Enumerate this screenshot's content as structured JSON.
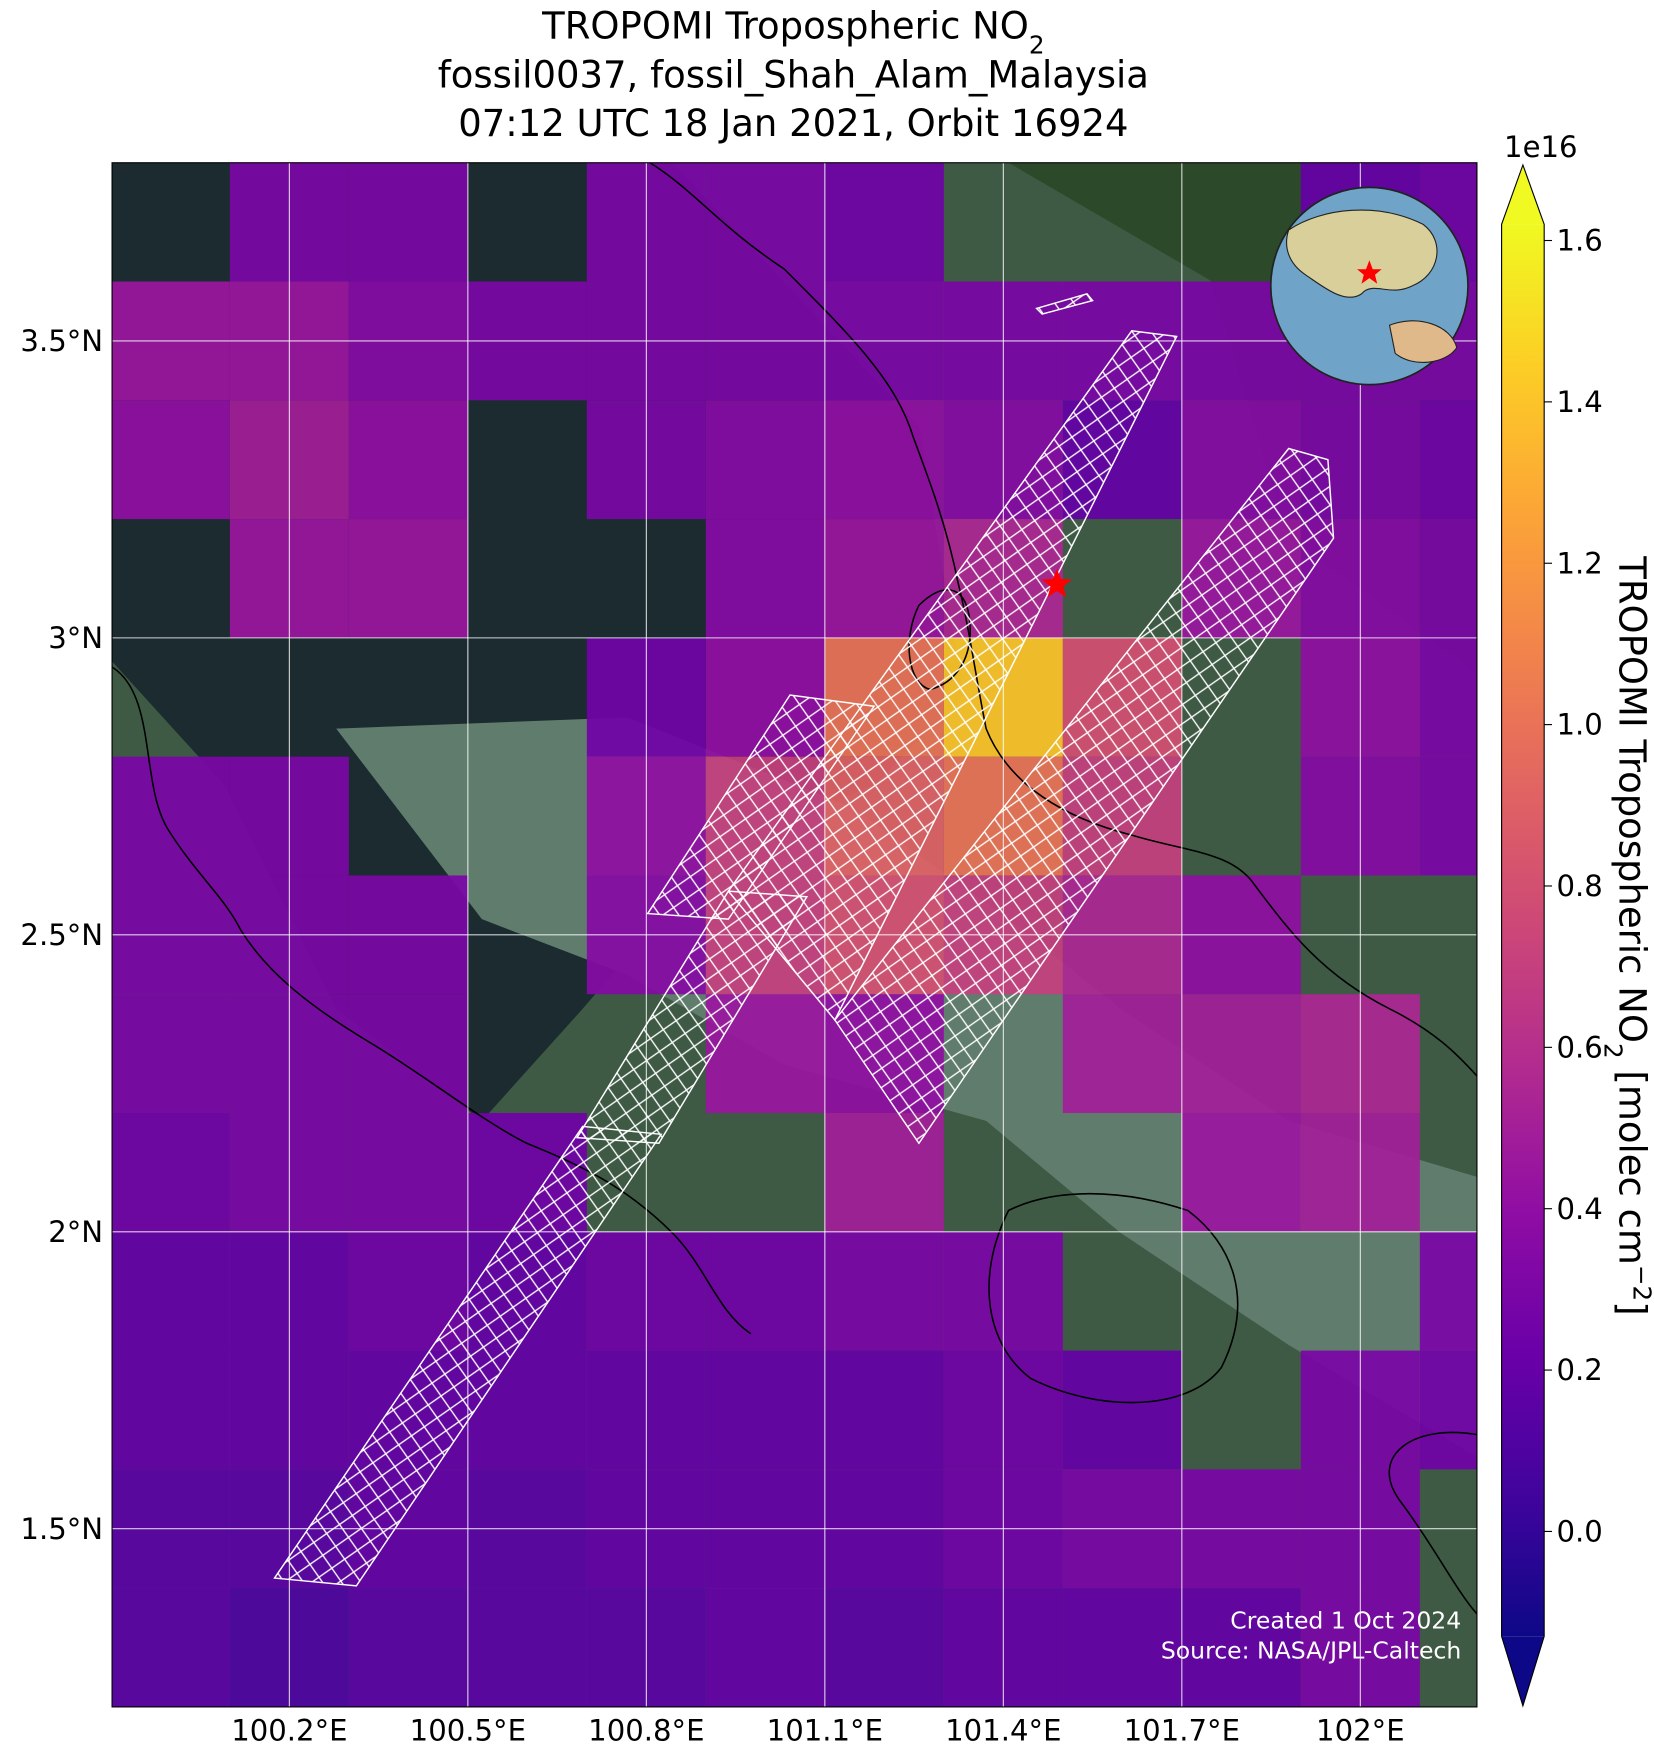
{
  "chart_data": {
    "type": "map",
    "title": {
      "text": "TROPOMI Tropospheric NO",
      "subscript": "2"
    },
    "subtitle": [
      "fossil0037, fossil_Shah_Alam_Malaysia",
      "07:12 UTC 18 Jan 2021, Orbit 16924"
    ],
    "xlim": [
      99.902,
      102.196
    ],
    "ylim": [
      1.2,
      3.8
    ],
    "xticks": [
      {
        "value": 100.2,
        "label": "100.2°E"
      },
      {
        "value": 100.5,
        "label": "100.5°E"
      },
      {
        "value": 100.8,
        "label": "100.8°E"
      },
      {
        "value": 101.1,
        "label": "101.1°E"
      },
      {
        "value": 101.4,
        "label": "101.4°E"
      },
      {
        "value": 101.7,
        "label": "101.7°E"
      },
      {
        "value": 102,
        "label": "102°E"
      }
    ],
    "yticks": [
      {
        "value": 1.5,
        "label": "1.5°N"
      },
      {
        "value": 2,
        "label": "2°N"
      },
      {
        "value": 2.5,
        "label": "2.5°N"
      },
      {
        "value": 3,
        "label": "3°N"
      },
      {
        "value": 3.5,
        "label": "3.5°N"
      }
    ],
    "grid": true,
    "lon_edges": [
      99.9,
      100.1,
      100.3,
      100.5,
      100.7,
      100.9,
      101.1,
      101.3,
      101.5,
      101.7,
      101.9,
      102.1,
      102.3
    ],
    "lat_edges": [
      3.8,
      3.6,
      3.4,
      3.2,
      3.0,
      2.8,
      2.6,
      2.4,
      2.2,
      2.0,
      1.8,
      1.6,
      1.4,
      1.2
    ],
    "values": [
      [
        null,
        0.3,
        0.3,
        null,
        0.3,
        0.3,
        0.25,
        null,
        null,
        null,
        0.2,
        0.25
      ],
      [
        0.45,
        0.45,
        0.35,
        0.3,
        0.3,
        0.3,
        0.3,
        0.3,
        0.3,
        0.3,
        0.3,
        0.3
      ],
      [
        0.4,
        0.5,
        0.4,
        null,
        0.3,
        0.35,
        0.4,
        0.35,
        0.2,
        0.35,
        0.3,
        0.25
      ],
      [
        null,
        0.45,
        0.45,
        null,
        null,
        0.35,
        0.45,
        0.55,
        null,
        0.45,
        0.35,
        0.3
      ],
      [
        null,
        null,
        null,
        null,
        0.25,
        0.4,
        1.0,
        1.4,
        0.8,
        null,
        0.4,
        0.3
      ],
      [
        0.3,
        0.3,
        null,
        null,
        0.4,
        0.7,
        0.9,
        1.0,
        0.7,
        null,
        0.35,
        0.3
      ],
      [
        0.3,
        0.3,
        0.3,
        null,
        0.35,
        0.7,
        0.8,
        0.7,
        0.55,
        0.4,
        null,
        null
      ],
      [
        0.3,
        0.3,
        0.3,
        null,
        null,
        0.45,
        0.4,
        null,
        0.5,
        0.5,
        0.55,
        null
      ],
      [
        0.25,
        0.3,
        0.3,
        0.25,
        null,
        null,
        0.5,
        null,
        null,
        0.45,
        0.5,
        null
      ],
      [
        0.2,
        0.2,
        0.25,
        0.2,
        0.25,
        0.25,
        0.3,
        0.3,
        null,
        null,
        null,
        0.3
      ],
      [
        0.2,
        0.2,
        0.2,
        0.2,
        0.2,
        0.2,
        0.2,
        0.25,
        0.2,
        null,
        0.3,
        0.25
      ],
      [
        0.15,
        0.15,
        0.2,
        0.15,
        0.2,
        0.2,
        0.2,
        0.25,
        0.3,
        0.3,
        0.3,
        null
      ],
      [
        0.15,
        0.1,
        0.15,
        0.15,
        0.15,
        0.2,
        0.15,
        0.2,
        0.2,
        0.2,
        0.3,
        null
      ]
    ],
    "colormap": "plasma",
    "clim": [
      -0.13,
      1.62
    ],
    "cticks": [
      {
        "value": 0,
        "label": "0.0"
      },
      0.2,
      0.4,
      0.6,
      0.8,
      {
        "value": 1,
        "label": "1.0"
      },
      1.2,
      1.4,
      1.6
    ],
    "cscale_label": "1e16",
    "colorbar_label": {
      "text": "TROPOMI Tropospheric NO",
      "subscript": "2",
      "unit": " [molec cm",
      "superscript": "−2",
      "close": "]"
    },
    "site": {
      "lon": 101.49,
      "lat": 3.09,
      "color": "#ff0000"
    },
    "annotations": [
      "Created 1 Oct 2024",
      "Source: NASA/JPL-Caltech"
    ]
  }
}
